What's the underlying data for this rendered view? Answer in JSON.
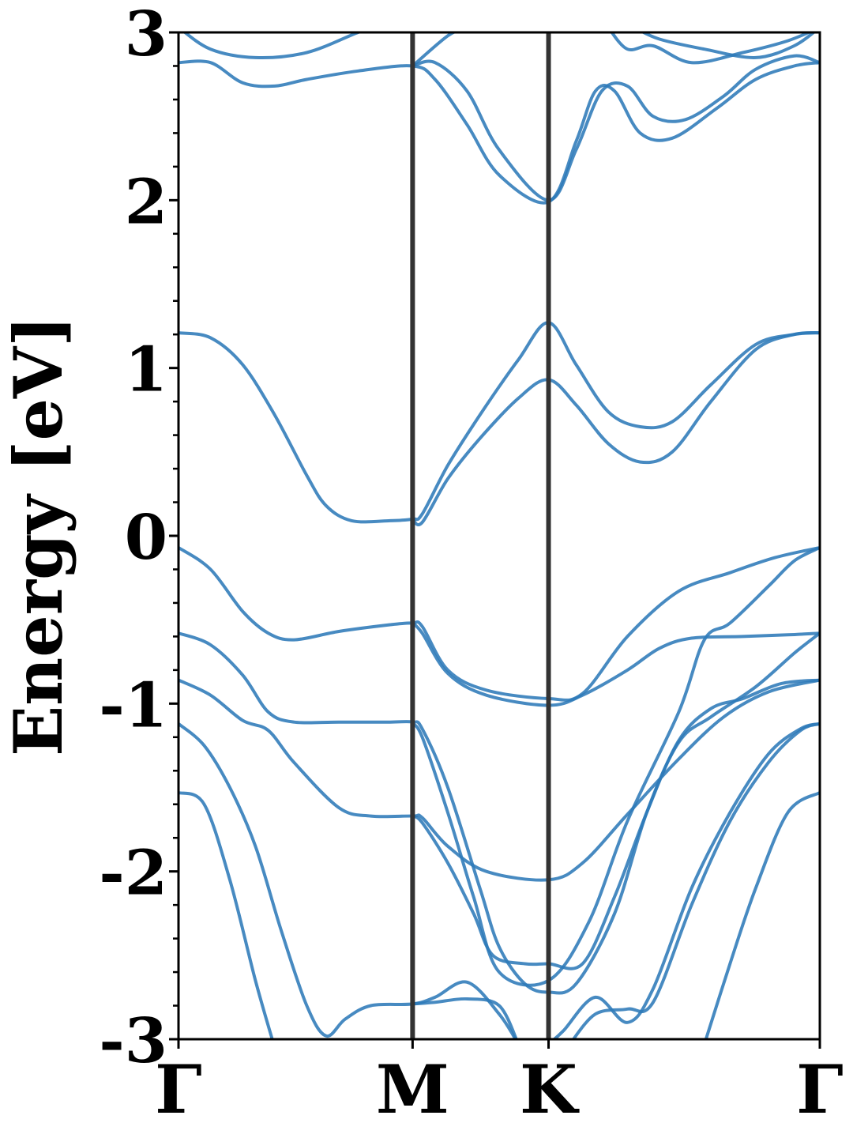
{
  "chart_data": {
    "type": "line",
    "title": "",
    "xlabel": "",
    "ylabel": "Energy [eV]",
    "ylim": [
      -3,
      3
    ],
    "x_ticks": [
      {
        "label": "Γ",
        "x": 0
      },
      {
        "label": "M",
        "x": 0.365
      },
      {
        "label": "K",
        "x": 0.577
      },
      {
        "label": "Γ",
        "x": 1
      }
    ],
    "y_ticks": [
      {
        "label": "-3",
        "y": -3
      },
      {
        "label": "-2",
        "y": -2
      },
      {
        "label": "-1",
        "y": -1
      },
      {
        "label": "0",
        "y": 0
      },
      {
        "label": "1",
        "y": 1
      },
      {
        "label": "2",
        "y": 2
      },
      {
        "label": "3",
        "y": 3
      }
    ],
    "y_minor_step": 0.2,
    "high_symmetry_lines": [
      0.365,
      0.577
    ],
    "grid": false,
    "line_color": "#2e7ab8",
    "vline_color": "#333333",
    "series": [
      {
        "points": [
          [
            0,
            1.21
          ],
          [
            0.05,
            1.18
          ],
          [
            0.1,
            1.02
          ],
          [
            0.15,
            0.72
          ],
          [
            0.2,
            0.36
          ],
          [
            0.23,
            0.18
          ],
          [
            0.27,
            0.09
          ],
          [
            0.33,
            0.09
          ],
          [
            0.365,
            0.1
          ],
          [
            0.38,
            0.13
          ],
          [
            0.42,
            0.42
          ],
          [
            0.47,
            0.72
          ],
          [
            0.53,
            1.05
          ],
          [
            0.577,
            1.27
          ],
          [
            0.62,
            1.02
          ],
          [
            0.67,
            0.74
          ],
          [
            0.72,
            0.65
          ],
          [
            0.77,
            0.68
          ],
          [
            0.83,
            0.9
          ],
          [
            0.9,
            1.14
          ],
          [
            0.96,
            1.2
          ],
          [
            1,
            1.21
          ]
        ]
      },
      {
        "points": [
          [
            0.365,
            0.1
          ],
          [
            0.38,
            0.08
          ],
          [
            0.42,
            0.34
          ],
          [
            0.47,
            0.58
          ],
          [
            0.53,
            0.82
          ],
          [
            0.577,
            0.93
          ],
          [
            0.62,
            0.78
          ],
          [
            0.67,
            0.55
          ],
          [
            0.72,
            0.44
          ],
          [
            0.77,
            0.5
          ],
          [
            0.83,
            0.8
          ],
          [
            0.9,
            1.11
          ],
          [
            0.96,
            1.2
          ],
          [
            1,
            1.21
          ]
        ]
      },
      {
        "points": [
          [
            0,
            -0.07
          ],
          [
            0.05,
            -0.2
          ],
          [
            0.1,
            -0.45
          ],
          [
            0.14,
            -0.58
          ],
          [
            0.18,
            -0.62
          ],
          [
            0.25,
            -0.57
          ],
          [
            0.33,
            -0.53
          ],
          [
            0.365,
            -0.52
          ],
          [
            0.38,
            -0.54
          ],
          [
            0.42,
            -0.8
          ],
          [
            0.48,
            -0.92
          ],
          [
            0.577,
            -0.97
          ],
          [
            0.63,
            -0.94
          ],
          [
            0.7,
            -0.6
          ],
          [
            0.78,
            -0.33
          ],
          [
            0.86,
            -0.22
          ],
          [
            0.93,
            -0.13
          ],
          [
            1,
            -0.07
          ]
        ]
      },
      {
        "points": [
          [
            0.365,
            -0.52
          ],
          [
            0.38,
            -0.58
          ],
          [
            0.42,
            -0.82
          ],
          [
            0.48,
            -0.95
          ],
          [
            0.577,
            -1.01
          ],
          [
            0.63,
            -0.95
          ],
          [
            0.7,
            -0.8
          ],
          [
            0.75,
            -0.67
          ],
          [
            0.8,
            -0.61
          ],
          [
            0.88,
            -0.6
          ],
          [
            0.95,
            -0.59
          ],
          [
            1,
            -0.58
          ]
        ]
      },
      {
        "points": [
          [
            0,
            -0.58
          ],
          [
            0.05,
            -0.65
          ],
          [
            0.1,
            -0.83
          ],
          [
            0.14,
            -1.05
          ],
          [
            0.18,
            -1.11
          ],
          [
            0.25,
            -1.11
          ],
          [
            0.33,
            -1.11
          ],
          [
            0.365,
            -1.11
          ],
          [
            0.38,
            -1.15
          ],
          [
            0.42,
            -1.5
          ],
          [
            0.47,
            -2.1
          ],
          [
            0.5,
            -2.45
          ],
          [
            0.54,
            -2.67
          ],
          [
            0.577,
            -2.72
          ],
          [
            0.62,
            -2.67
          ],
          [
            0.68,
            -2.25
          ],
          [
            0.73,
            -1.65
          ],
          [
            0.78,
            -1.23
          ],
          [
            0.83,
            -1.08
          ],
          [
            0.9,
            -0.9
          ],
          [
            0.96,
            -0.7
          ],
          [
            1,
            -0.58
          ]
        ]
      },
      {
        "points": [
          [
            0,
            -0.86
          ],
          [
            0.05,
            -0.95
          ],
          [
            0.1,
            -1.1
          ],
          [
            0.14,
            -1.16
          ],
          [
            0.18,
            -1.35
          ],
          [
            0.25,
            -1.62
          ],
          [
            0.3,
            -1.67
          ],
          [
            0.365,
            -1.67
          ],
          [
            0.38,
            -1.68
          ],
          [
            0.42,
            -1.85
          ],
          [
            0.48,
            -2.0
          ],
          [
            0.577,
            -2.05
          ],
          [
            0.63,
            -1.95
          ],
          [
            0.7,
            -1.66
          ],
          [
            0.78,
            -1.33
          ],
          [
            0.85,
            -1.08
          ],
          [
            0.92,
            -0.93
          ],
          [
            1,
            -0.86
          ]
        ]
      },
      {
        "points": [
          [
            0,
            -1.12
          ],
          [
            0.04,
            -1.25
          ],
          [
            0.08,
            -1.5
          ],
          [
            0.12,
            -1.85
          ],
          [
            0.16,
            -2.35
          ],
          [
            0.2,
            -2.8
          ],
          [
            0.23,
            -2.98
          ],
          [
            0.26,
            -2.88
          ],
          [
            0.3,
            -2.8
          ],
          [
            0.365,
            -2.79
          ],
          [
            0.4,
            -2.75
          ],
          [
            0.45,
            -2.66
          ],
          [
            0.5,
            -2.85
          ],
          [
            0.53,
            -3.03
          ]
        ]
      },
      {
        "points": [
          [
            0.365,
            -1.67
          ],
          [
            0.38,
            -1.71
          ],
          [
            0.42,
            -1.95
          ],
          [
            0.46,
            -2.25
          ],
          [
            0.49,
            -2.5
          ],
          [
            0.54,
            -2.55
          ],
          [
            0.577,
            -2.55
          ],
          [
            0.63,
            -2.55
          ],
          [
            0.68,
            -2.15
          ],
          [
            0.73,
            -1.65
          ],
          [
            0.78,
            -1.22
          ],
          [
            0.83,
            -1.03
          ],
          [
            0.88,
            -0.97
          ],
          [
            0.94,
            -0.88
          ],
          [
            1,
            -0.86
          ]
        ]
      },
      {
        "points": [
          [
            0,
            -1.53
          ],
          [
            0.04,
            -1.6
          ],
          [
            0.08,
            -2.05
          ],
          [
            0.12,
            -2.65
          ],
          [
            0.15,
            -3.05
          ]
        ]
      },
      {
        "points": [
          [
            0.365,
            -2.79
          ],
          [
            0.4,
            -2.78
          ],
          [
            0.45,
            -2.76
          ],
          [
            0.5,
            -2.8
          ],
          [
            0.53,
            -3.03
          ]
        ]
      },
      {
        "points": [
          [
            0.577,
            -3.03
          ],
          [
            0.6,
            -2.95
          ],
          [
            0.65,
            -2.75
          ],
          [
            0.7,
            -2.9
          ],
          [
            0.74,
            -2.7
          ],
          [
            0.8,
            -2.1
          ],
          [
            0.86,
            -1.65
          ],
          [
            0.92,
            -1.3
          ],
          [
            0.97,
            -1.15
          ],
          [
            1,
            -1.12
          ]
        ]
      },
      {
        "points": [
          [
            0.61,
            -3.03
          ],
          [
            0.65,
            -2.85
          ],
          [
            0.7,
            -2.82
          ],
          [
            0.74,
            -2.78
          ],
          [
            0.8,
            -2.2
          ],
          [
            0.86,
            -1.7
          ],
          [
            0.92,
            -1.35
          ],
          [
            0.97,
            -1.16
          ],
          [
            1,
            -1.12
          ]
        ]
      },
      {
        "points": [
          [
            0.82,
            -3.03
          ],
          [
            0.86,
            -2.55
          ],
          [
            0.9,
            -2.1
          ],
          [
            0.95,
            -1.65
          ],
          [
            1,
            -1.53
          ]
        ]
      },
      {
        "points": [
          [
            0.365,
            -1.12
          ],
          [
            0.38,
            -1.2
          ],
          [
            0.42,
            -1.65
          ],
          [
            0.46,
            -2.15
          ],
          [
            0.5,
            -2.6
          ],
          [
            0.577,
            -2.65
          ],
          [
            0.64,
            -2.3
          ],
          [
            0.7,
            -1.7
          ],
          [
            0.78,
            -1.05
          ],
          [
            0.82,
            -0.62
          ],
          [
            0.86,
            -0.52
          ],
          [
            0.92,
            -0.3
          ],
          [
            0.96,
            -0.15
          ],
          [
            1,
            -0.07
          ]
        ]
      },
      {
        "points": [
          [
            0,
            2.82
          ],
          [
            0.05,
            2.82
          ],
          [
            0.1,
            2.7
          ],
          [
            0.15,
            2.68
          ],
          [
            0.2,
            2.72
          ],
          [
            0.28,
            2.77
          ],
          [
            0.365,
            2.8
          ],
          [
            0.4,
            2.72
          ],
          [
            0.45,
            2.45
          ],
          [
            0.5,
            2.15
          ],
          [
            0.577,
            1.99
          ],
          [
            0.62,
            2.35
          ],
          [
            0.65,
            2.65
          ],
          [
            0.68,
            2.65
          ],
          [
            0.72,
            2.4
          ],
          [
            0.77,
            2.37
          ],
          [
            0.84,
            2.55
          ],
          [
            0.9,
            2.72
          ],
          [
            0.96,
            2.8
          ],
          [
            1,
            2.82
          ]
        ]
      },
      {
        "points": [
          [
            0.365,
            2.8
          ],
          [
            0.4,
            2.82
          ],
          [
            0.45,
            2.65
          ],
          [
            0.5,
            2.3
          ],
          [
            0.577,
            2.0
          ],
          [
            0.62,
            2.3
          ],
          [
            0.66,
            2.65
          ],
          [
            0.7,
            2.68
          ],
          [
            0.74,
            2.5
          ],
          [
            0.79,
            2.48
          ],
          [
            0.85,
            2.62
          ],
          [
            0.9,
            2.78
          ],
          [
            0.96,
            2.86
          ],
          [
            1,
            2.82
          ]
        ]
      },
      {
        "points": [
          [
            0,
            3.03
          ],
          [
            0.05,
            2.9
          ],
          [
            0.12,
            2.85
          ],
          [
            0.2,
            2.88
          ],
          [
            0.28,
            3.0
          ],
          [
            0.32,
            3.05
          ]
        ]
      },
      {
        "points": [
          [
            0.365,
            2.8
          ],
          [
            0.42,
            2.98
          ],
          [
            0.45,
            3.03
          ]
        ]
      },
      {
        "points": [
          [
            0.67,
            3.03
          ],
          [
            0.7,
            2.9
          ],
          [
            0.74,
            2.92
          ],
          [
            0.8,
            2.82
          ],
          [
            0.88,
            2.88
          ],
          [
            0.95,
            2.95
          ],
          [
            1,
            3.03
          ]
        ]
      },
      {
        "points": [
          [
            0.71,
            3.03
          ],
          [
            0.75,
            2.96
          ],
          [
            0.82,
            2.9
          ],
          [
            0.9,
            2.85
          ],
          [
            0.96,
            2.92
          ],
          [
            1,
            3.03
          ]
        ]
      }
    ]
  }
}
